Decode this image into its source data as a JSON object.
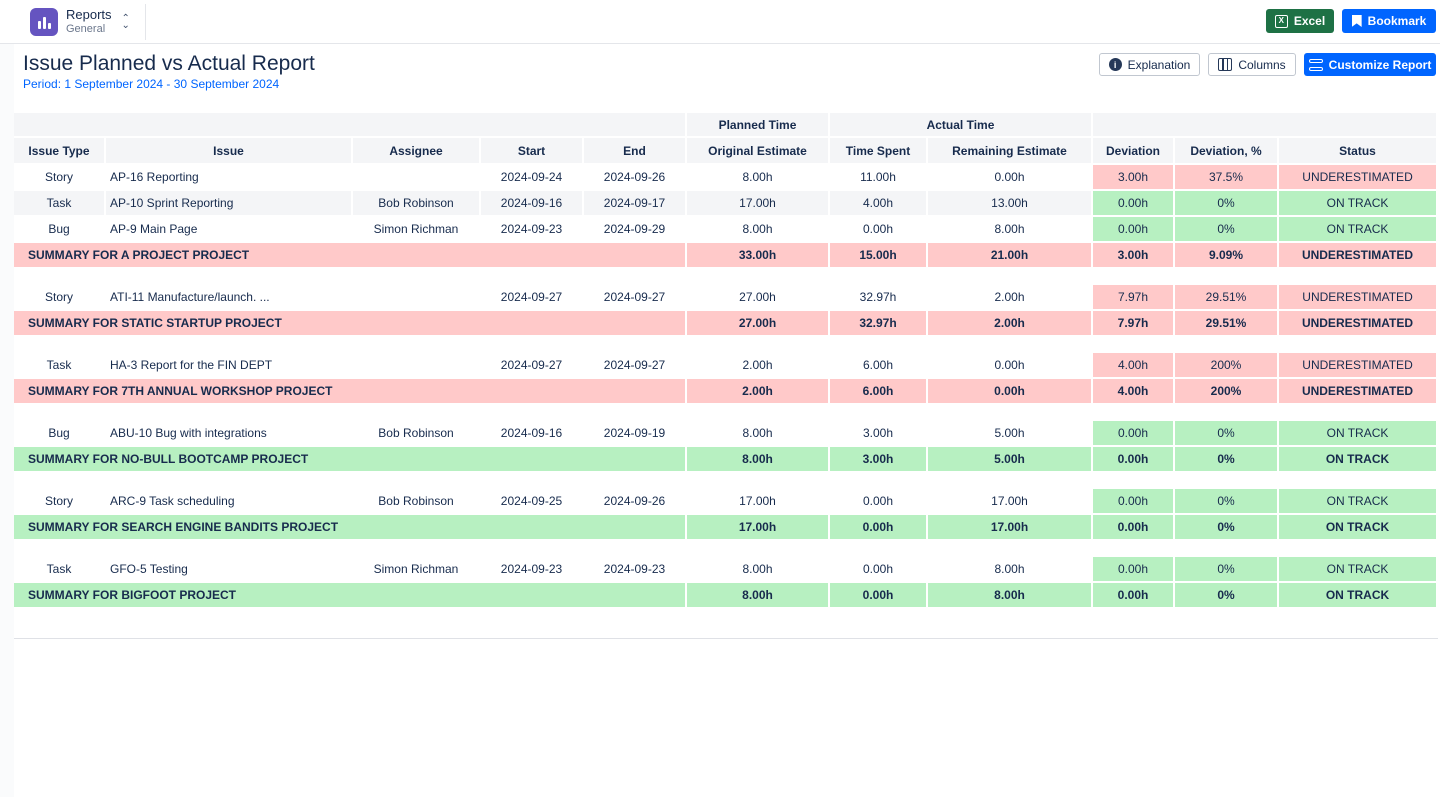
{
  "app": {
    "title": "Reports",
    "subtitle": "General"
  },
  "toolbar": {
    "excel_label": "Excel",
    "bookmark_label": "Bookmark"
  },
  "header": {
    "title": "Issue Planned vs Actual Report",
    "period": "Period: 1 September 2024 - 30 September 2024",
    "explanation_label": "Explanation",
    "columns_label": "Columns",
    "customize_label": "Customize Report"
  },
  "colors": {
    "accent": "#0065ff",
    "excel": "#1e7145",
    "overrun": "#ffc9c9",
    "on_track": "#b7f0c1"
  },
  "table": {
    "groups": {
      "planned": "Planned Time",
      "actual": "Actual Time"
    },
    "columns": [
      "Issue Type",
      "Issue",
      "Assignee",
      "Start",
      "End",
      "Original Estimate",
      "Time Spent",
      "Remaining Estimate",
      "Deviation",
      "Deviation, %",
      "Status"
    ],
    "projects": [
      {
        "rows": [
          {
            "type": "Story",
            "issue": "AP-16 Reporting",
            "assignee": "",
            "start": "2024-09-24",
            "end": "2024-09-26",
            "original": "8.00h",
            "spent": "11.00h",
            "remaining": "0.00h",
            "deviation": "3.00h",
            "deviation_pct": "37.5%",
            "status": "UNDERESTIMATED"
          },
          {
            "type": "Task",
            "issue": "AP-10 Sprint Reporting",
            "assignee": "Bob Robinson",
            "start": "2024-09-16",
            "end": "2024-09-17",
            "original": "17.00h",
            "spent": "4.00h",
            "remaining": "13.00h",
            "deviation": "0.00h",
            "deviation_pct": "0%",
            "status": "ON TRACK"
          },
          {
            "type": "Bug",
            "issue": "AP-9 Main Page",
            "assignee": "Simon Richman",
            "start": "2024-09-23",
            "end": "2024-09-29",
            "original": "8.00h",
            "spent": "0.00h",
            "remaining": "8.00h",
            "deviation": "0.00h",
            "deviation_pct": "0%",
            "status": "ON TRACK"
          }
        ],
        "summary": {
          "label": "SUMMARY FOR A PROJECT PROJECT",
          "original": "33.00h",
          "spent": "15.00h",
          "remaining": "21.00h",
          "deviation": "3.00h",
          "deviation_pct": "9.09%",
          "status": "UNDERESTIMATED"
        }
      },
      {
        "rows": [
          {
            "type": "Story",
            "issue": "ATI-11 Manufacture/launch. ...",
            "assignee": "",
            "start": "2024-09-27",
            "end": "2024-09-27",
            "original": "27.00h",
            "spent": "32.97h",
            "remaining": "2.00h",
            "deviation": "7.97h",
            "deviation_pct": "29.51%",
            "status": "UNDERESTIMATED"
          }
        ],
        "summary": {
          "label": "SUMMARY FOR STATIC STARTUP PROJECT",
          "original": "27.00h",
          "spent": "32.97h",
          "remaining": "2.00h",
          "deviation": "7.97h",
          "deviation_pct": "29.51%",
          "status": "UNDERESTIMATED"
        }
      },
      {
        "rows": [
          {
            "type": "Task",
            "issue": "HA-3 Report for the FIN DEPT",
            "assignee": "",
            "start": "2024-09-27",
            "end": "2024-09-27",
            "original": "2.00h",
            "spent": "6.00h",
            "remaining": "0.00h",
            "deviation": "4.00h",
            "deviation_pct": "200%",
            "status": "UNDERESTIMATED"
          }
        ],
        "summary": {
          "label": "SUMMARY FOR 7TH ANNUAL WORKSHOP PROJECT",
          "original": "2.00h",
          "spent": "6.00h",
          "remaining": "0.00h",
          "deviation": "4.00h",
          "deviation_pct": "200%",
          "status": "UNDERESTIMATED"
        }
      },
      {
        "rows": [
          {
            "type": "Bug",
            "issue": "ABU-10 Bug with integrations",
            "assignee": "Bob Robinson",
            "start": "2024-09-16",
            "end": "2024-09-19",
            "original": "8.00h",
            "spent": "3.00h",
            "remaining": "5.00h",
            "deviation": "0.00h",
            "deviation_pct": "0%",
            "status": "ON TRACK"
          }
        ],
        "summary": {
          "label": "SUMMARY FOR NO-BULL BOOTCAMP PROJECT",
          "original": "8.00h",
          "spent": "3.00h",
          "remaining": "5.00h",
          "deviation": "0.00h",
          "deviation_pct": "0%",
          "status": "ON TRACK"
        }
      },
      {
        "rows": [
          {
            "type": "Story",
            "issue": "ARC-9 Task scheduling",
            "assignee": "Bob Robinson",
            "start": "2024-09-25",
            "end": "2024-09-26",
            "original": "17.00h",
            "spent": "0.00h",
            "remaining": "17.00h",
            "deviation": "0.00h",
            "deviation_pct": "0%",
            "status": "ON TRACK"
          }
        ],
        "summary": {
          "label": "SUMMARY FOR SEARCH ENGINE BANDITS PROJECT",
          "original": "17.00h",
          "spent": "0.00h",
          "remaining": "17.00h",
          "deviation": "0.00h",
          "deviation_pct": "0%",
          "status": "ON TRACK"
        }
      },
      {
        "rows": [
          {
            "type": "Task",
            "issue": "GFO-5 Testing",
            "assignee": "Simon Richman",
            "start": "2024-09-23",
            "end": "2024-09-23",
            "original": "8.00h",
            "spent": "0.00h",
            "remaining": "8.00h",
            "deviation": "0.00h",
            "deviation_pct": "0%",
            "status": "ON TRACK"
          }
        ],
        "summary": {
          "label": "SUMMARY FOR BIGFOOT PROJECT",
          "original": "8.00h",
          "spent": "0.00h",
          "remaining": "8.00h",
          "deviation": "0.00h",
          "deviation_pct": "0%",
          "status": "ON TRACK"
        }
      }
    ]
  }
}
